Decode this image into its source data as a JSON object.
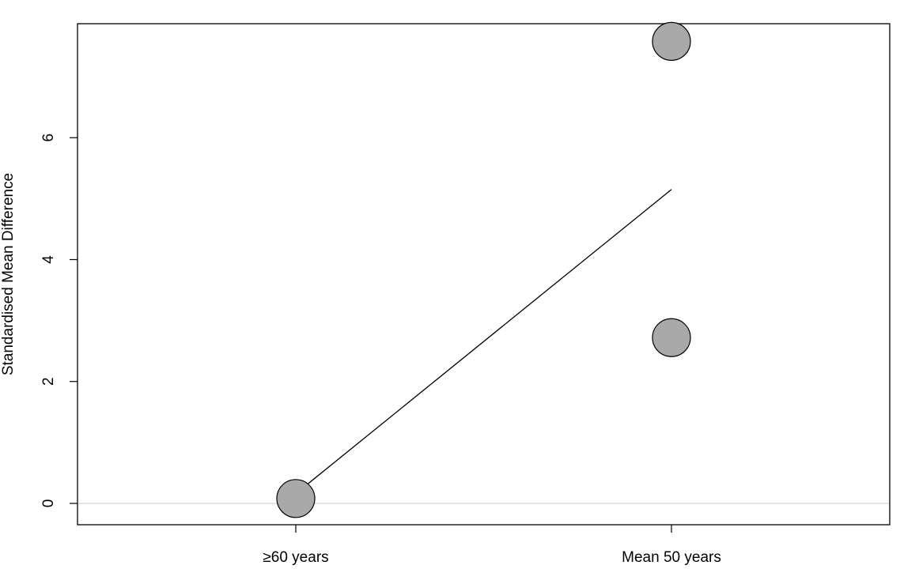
{
  "chart_data": {
    "type": "scatter",
    "categories": [
      "≥60 years",
      "Mean 50 years"
    ],
    "points": [
      {
        "x": "≥60 years",
        "y": 0.08
      },
      {
        "x": "Mean 50 years",
        "y": 7.58
      },
      {
        "x": "Mean 50 years",
        "y": 2.72
      }
    ],
    "regression_line": {
      "from": {
        "x": "≥60 years",
        "y": 0.16
      },
      "to": {
        "x": "Mean 50 years",
        "y": 5.15
      }
    },
    "reference_line_y": 0,
    "xlabel": "",
    "ylabel": "Standardised Mean Difference",
    "ylim": [
      -0.35,
      7.87
    ],
    "yticks": [
      0,
      2,
      4,
      6
    ],
    "grid": false,
    "colors": {
      "point_fill": "#a9a9a9",
      "point_stroke": "#000000",
      "line": "#000000",
      "reference_line": "#cccccc",
      "axes": "#000000"
    }
  }
}
